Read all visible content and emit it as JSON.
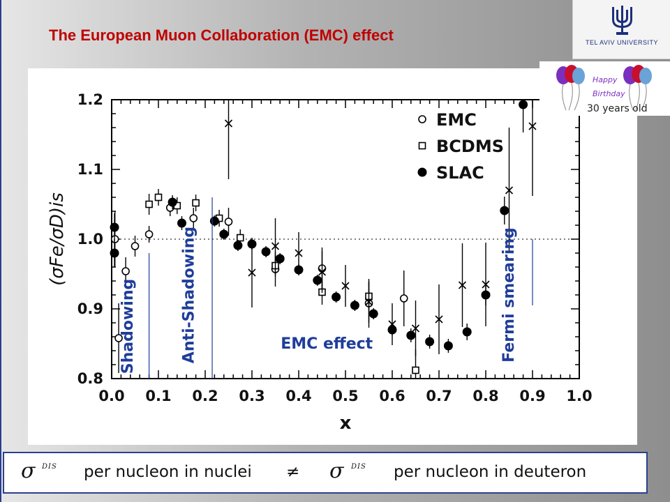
{
  "slide": {
    "title": "The European  Muon Collaboration (EMC) effect",
    "logo_text": "TEL AVIV UNIVERSITY",
    "badge": {
      "text_line1": "Happy",
      "text_line2": "Birthday",
      "caption": "30 years old"
    },
    "bottom": {
      "sigma": "σ",
      "superscript": "DIS",
      "left_text": "per nucleon in nuclei",
      "neq": "≠",
      "right_text": "per nucleon in deuteron"
    },
    "colors": {
      "title": "#c00000",
      "frame": "#2a3f8f",
      "logo": "#1b2f7d"
    }
  },
  "chart_data": {
    "type": "scatter",
    "xlabel": "x",
    "ylabel": "(σFe/σD)is",
    "xlim": [
      0.0,
      1.0
    ],
    "ylim": [
      0.8,
      1.2
    ],
    "x_ticks": [
      "0.0",
      "0.1",
      "0.2",
      "0.3",
      "0.4",
      "0.5",
      "0.6",
      "0.7",
      "0.8",
      "0.9",
      "1.0"
    ],
    "y_ticks": [
      "0.8",
      "0.9",
      "1.0",
      "1.1",
      "1.2"
    ],
    "reference_line": 1.0,
    "legend_position": "top-right",
    "series": [
      {
        "name": "EMC",
        "marker": "open-circle",
        "points": [
          {
            "x": 0.007,
            "y": 1.0,
            "err": 0.04
          },
          {
            "x": 0.015,
            "y": 0.858,
            "err": 0.05
          },
          {
            "x": 0.03,
            "y": 0.954,
            "err": 0.02
          },
          {
            "x": 0.05,
            "y": 0.99,
            "err": 0.015
          },
          {
            "x": 0.08,
            "y": 1.007,
            "err": 0.012
          },
          {
            "x": 0.125,
            "y": 1.045,
            "err": 0.012
          },
          {
            "x": 0.175,
            "y": 1.03,
            "err": 0.015
          },
          {
            "x": 0.25,
            "y": 1.025,
            "err": 0.02
          },
          {
            "x": 0.35,
            "y": 0.957,
            "err": 0.025
          },
          {
            "x": 0.45,
            "y": 0.958,
            "err": 0.03
          },
          {
            "x": 0.55,
            "y": 0.908,
            "err": 0.035
          },
          {
            "x": 0.625,
            "y": 0.915,
            "err": 0.04
          }
        ]
      },
      {
        "name": "BCDMS",
        "marker": "open-square",
        "points": [
          {
            "x": 0.08,
            "y": 1.05,
            "err": 0.015
          },
          {
            "x": 0.1,
            "y": 1.06,
            "err": 0.012
          },
          {
            "x": 0.14,
            "y": 1.048,
            "err": 0.012
          },
          {
            "x": 0.18,
            "y": 1.052,
            "err": 0.012
          },
          {
            "x": 0.23,
            "y": 1.03,
            "err": 0.012
          },
          {
            "x": 0.275,
            "y": 1.002,
            "err": 0.012
          },
          {
            "x": 0.35,
            "y": 0.962,
            "err": 0.015
          },
          {
            "x": 0.45,
            "y": 0.924,
            "err": 0.018
          },
          {
            "x": 0.55,
            "y": 0.918,
            "err": 0.02
          },
          {
            "x": 0.65,
            "y": 0.812,
            "err": 0.03
          }
        ]
      },
      {
        "name": "SLAC",
        "marker": "filled-circle",
        "points": [
          {
            "x": 0.006,
            "y": 1.017,
            "err": 0.02
          },
          {
            "x": 0.006,
            "y": 0.98,
            "err": 0.02
          },
          {
            "x": 0.13,
            "y": 1.053,
            "err": 0.01
          },
          {
            "x": 0.15,
            "y": 1.023,
            "err": 0.01
          },
          {
            "x": 0.22,
            "y": 1.026,
            "err": 0.008
          },
          {
            "x": 0.24,
            "y": 1.007,
            "err": 0.008
          },
          {
            "x": 0.27,
            "y": 0.991,
            "err": 0.008
          },
          {
            "x": 0.3,
            "y": 0.993,
            "err": 0.008
          },
          {
            "x": 0.33,
            "y": 0.982,
            "err": 0.008
          },
          {
            "x": 0.36,
            "y": 0.972,
            "err": 0.008
          },
          {
            "x": 0.4,
            "y": 0.956,
            "err": 0.008
          },
          {
            "x": 0.44,
            "y": 0.941,
            "err": 0.008
          },
          {
            "x": 0.48,
            "y": 0.917,
            "err": 0.008
          },
          {
            "x": 0.52,
            "y": 0.905,
            "err": 0.008
          },
          {
            "x": 0.56,
            "y": 0.893,
            "err": 0.008
          },
          {
            "x": 0.6,
            "y": 0.87,
            "err": 0.008
          },
          {
            "x": 0.64,
            "y": 0.862,
            "err": 0.01
          },
          {
            "x": 0.68,
            "y": 0.853,
            "err": 0.01
          },
          {
            "x": 0.72,
            "y": 0.847,
            "err": 0.01
          },
          {
            "x": 0.76,
            "y": 0.867,
            "err": 0.012
          },
          {
            "x": 0.8,
            "y": 0.92,
            "err": 0.015
          },
          {
            "x": 0.84,
            "y": 1.041,
            "err": 0.02
          },
          {
            "x": 0.88,
            "y": 1.193,
            "err": 0.04
          }
        ]
      },
      {
        "name": "",
        "marker": "cross",
        "points": [
          {
            "x": 0.25,
            "y": 1.166,
            "err": 0.08
          },
          {
            "x": 0.3,
            "y": 0.952,
            "err": 0.05
          },
          {
            "x": 0.35,
            "y": 0.99,
            "err": 0.04
          },
          {
            "x": 0.4,
            "y": 0.98,
            "err": 0.03
          },
          {
            "x": 0.45,
            "y": 0.953,
            "err": 0.03
          },
          {
            "x": 0.5,
            "y": 0.933,
            "err": 0.03
          },
          {
            "x": 0.55,
            "y": 0.91,
            "err": 0.03
          },
          {
            "x": 0.6,
            "y": 0.878,
            "err": 0.03
          },
          {
            "x": 0.65,
            "y": 0.872,
            "err": 0.04
          },
          {
            "x": 0.7,
            "y": 0.885,
            "err": 0.05
          },
          {
            "x": 0.75,
            "y": 0.934,
            "err": 0.06
          },
          {
            "x": 0.8,
            "y": 0.935,
            "err": 0.06
          },
          {
            "x": 0.85,
            "y": 1.07,
            "err": 0.09
          },
          {
            "x": 0.9,
            "y": 1.162,
            "err": 0.1
          }
        ]
      }
    ],
    "annotations": [
      {
        "text": "Shadowing",
        "x": 0.045,
        "y": 0.875
      },
      {
        "text": "Anti-Shadowing",
        "x": 0.175,
        "y": 0.92
      },
      {
        "text": "EMC effect",
        "x": 0.46,
        "y": 0.843
      },
      {
        "text": "Fermi smearing",
        "x": 0.86,
        "y": 0.92
      }
    ]
  }
}
